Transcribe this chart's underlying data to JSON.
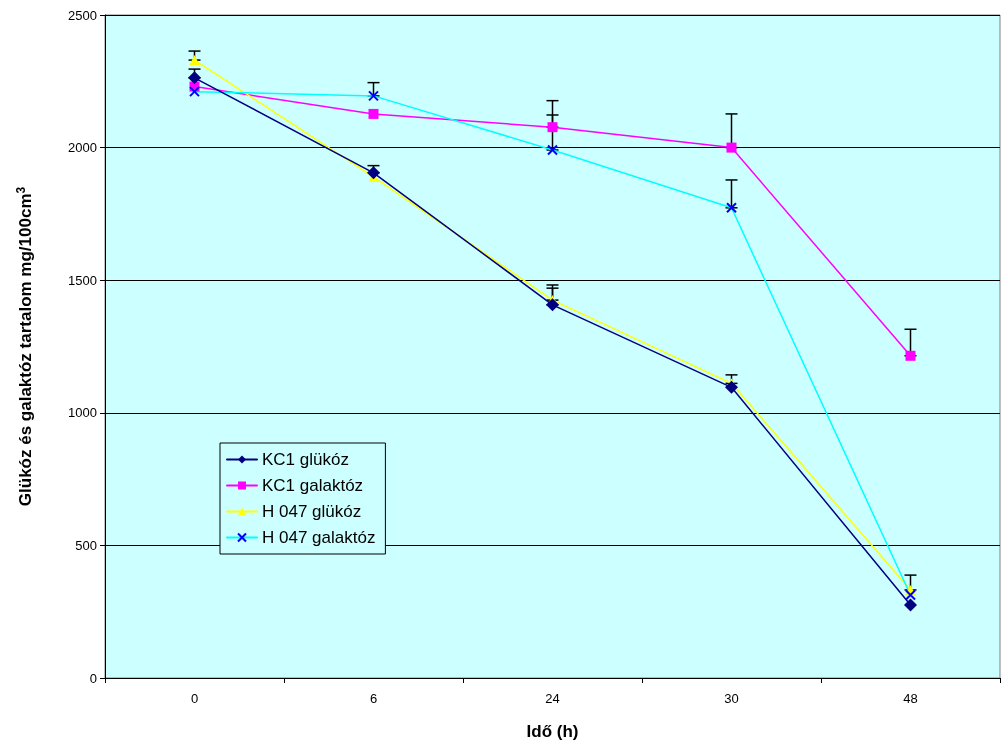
{
  "chart_data": {
    "type": "line",
    "xlabel": "Idő (h)",
    "ylabel": "Glükóz és galaktóz tartalom mg/100cm$^{3}$",
    "categories": [
      "0",
      "6",
      "24",
      "30",
      "48"
    ],
    "series": [
      {
        "name": "KC1 glükóz",
        "color": "#000080",
        "marker": "diamond",
        "values": [
          2263,
          1905,
          1407,
          1096,
          275
        ],
        "errors": [
          [
            2263,
            2296
          ],
          [
            1905,
            1932
          ],
          [
            1407,
            1470
          ],
          null,
          null
        ]
      },
      {
        "name": "KC1 galaktóz",
        "color": "#ff00ff",
        "marker": "square",
        "values": [
          2230,
          2127,
          2077,
          2000,
          1215
        ],
        "errors": [
          null,
          null,
          [
            2077,
            2177
          ],
          [
            2000,
            2127
          ],
          [
            1215,
            1315
          ]
        ]
      },
      {
        "name": "H 047 glükóz",
        "color": "#ffff00",
        "marker": "triangle",
        "values": [
          2330,
          1890,
          1425,
          1111,
          332
        ],
        "errors": [
          [
            2330,
            2364
          ],
          null,
          [
            1425,
            1482
          ],
          [
            1111,
            1143
          ],
          [
            332,
            388
          ]
        ]
      },
      {
        "name": "H 047 galaktóz",
        "color": "#00ffff",
        "marker": "cross",
        "values": [
          2211,
          2195,
          1991,
          1773,
          313
        ],
        "errors": [
          null,
          [
            2195,
            2245
          ],
          [
            1991,
            2123
          ],
          [
            1773,
            1878
          ],
          null
        ]
      }
    ],
    "ylim": [
      0,
      2500
    ],
    "yticks": [
      0,
      500,
      1000,
      1500,
      2000,
      2500
    ],
    "grid": "y",
    "legend": "bottom left",
    "line_style": "solid"
  }
}
